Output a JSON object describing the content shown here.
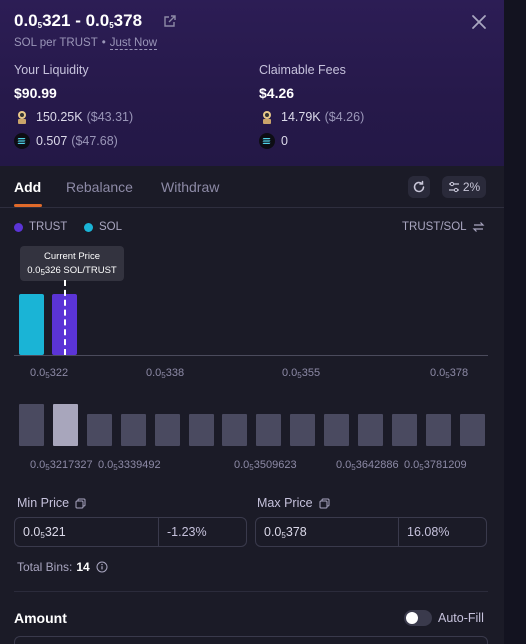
{
  "header": {
    "title_a": "0.0",
    "title_a_sub": "5",
    "title_a_rest": "321",
    "title_sep": " - ",
    "title_b": "0.0",
    "title_b_sub": "5",
    "title_b_rest": "378",
    "unit": "SOL per TRUST",
    "time": "Just Now",
    "dot": "•"
  },
  "liquidity": {
    "label": "Your Liquidity",
    "total": "$90.99",
    "trust_amount": "150.25K",
    "trust_usd": "($43.31)",
    "sol_amount": "0.507",
    "sol_usd": "($47.68)"
  },
  "fees": {
    "label": "Claimable Fees",
    "total": "$4.26",
    "trust_amount": "14.79K",
    "trust_usd": "($4.26)",
    "sol_amount": "0"
  },
  "tabs": [
    "Add",
    "Rebalance",
    "Withdraw"
  ],
  "slippage": "2%",
  "legend": {
    "trust": "TRUST",
    "sol": "SOL",
    "pair": "TRUST/SOL"
  },
  "tooltip": {
    "title": "Current Price",
    "value_a": "0.0",
    "value_sub": "5",
    "value_b": "326 SOL/TRUST"
  },
  "chart_ticks": [
    {
      "a": "0.0",
      "s": "5",
      "b": "322"
    },
    {
      "a": "0.0",
      "s": "5",
      "b": "338"
    },
    {
      "a": "0.0",
      "s": "5",
      "b": "355"
    },
    {
      "a": "0.0",
      "s": "5",
      "b": "378"
    }
  ],
  "bin_labels": [
    {
      "a": "0.0",
      "s": "5",
      "b": "3217327"
    },
    {
      "a": "0.0",
      "s": "5",
      "b": "3339492"
    },
    {
      "a": "0.0",
      "s": "5",
      "b": "3509623"
    },
    {
      "a": "0.0",
      "s": "5",
      "b": "3642886"
    },
    {
      "a": "0.0",
      "s": "5",
      "b": "3781209"
    }
  ],
  "bins_count": 14,
  "bins_selected_index": 1,
  "min_price": {
    "label": "Min Price",
    "a": "0.0",
    "s": "5",
    "b": "321",
    "pct": "-1.23%"
  },
  "max_price": {
    "label": "Max Price",
    "a": "0.0",
    "s": "5",
    "b": "378",
    "pct": "16.08%"
  },
  "total_bins": {
    "label": "Total Bins:",
    "value": "14"
  },
  "amount": {
    "label": "Amount",
    "autofill": "Auto-Fill"
  },
  "colors": {
    "sol": "#1ab4d6",
    "trust": "#5b34d6",
    "accent": "#e06a2a"
  }
}
